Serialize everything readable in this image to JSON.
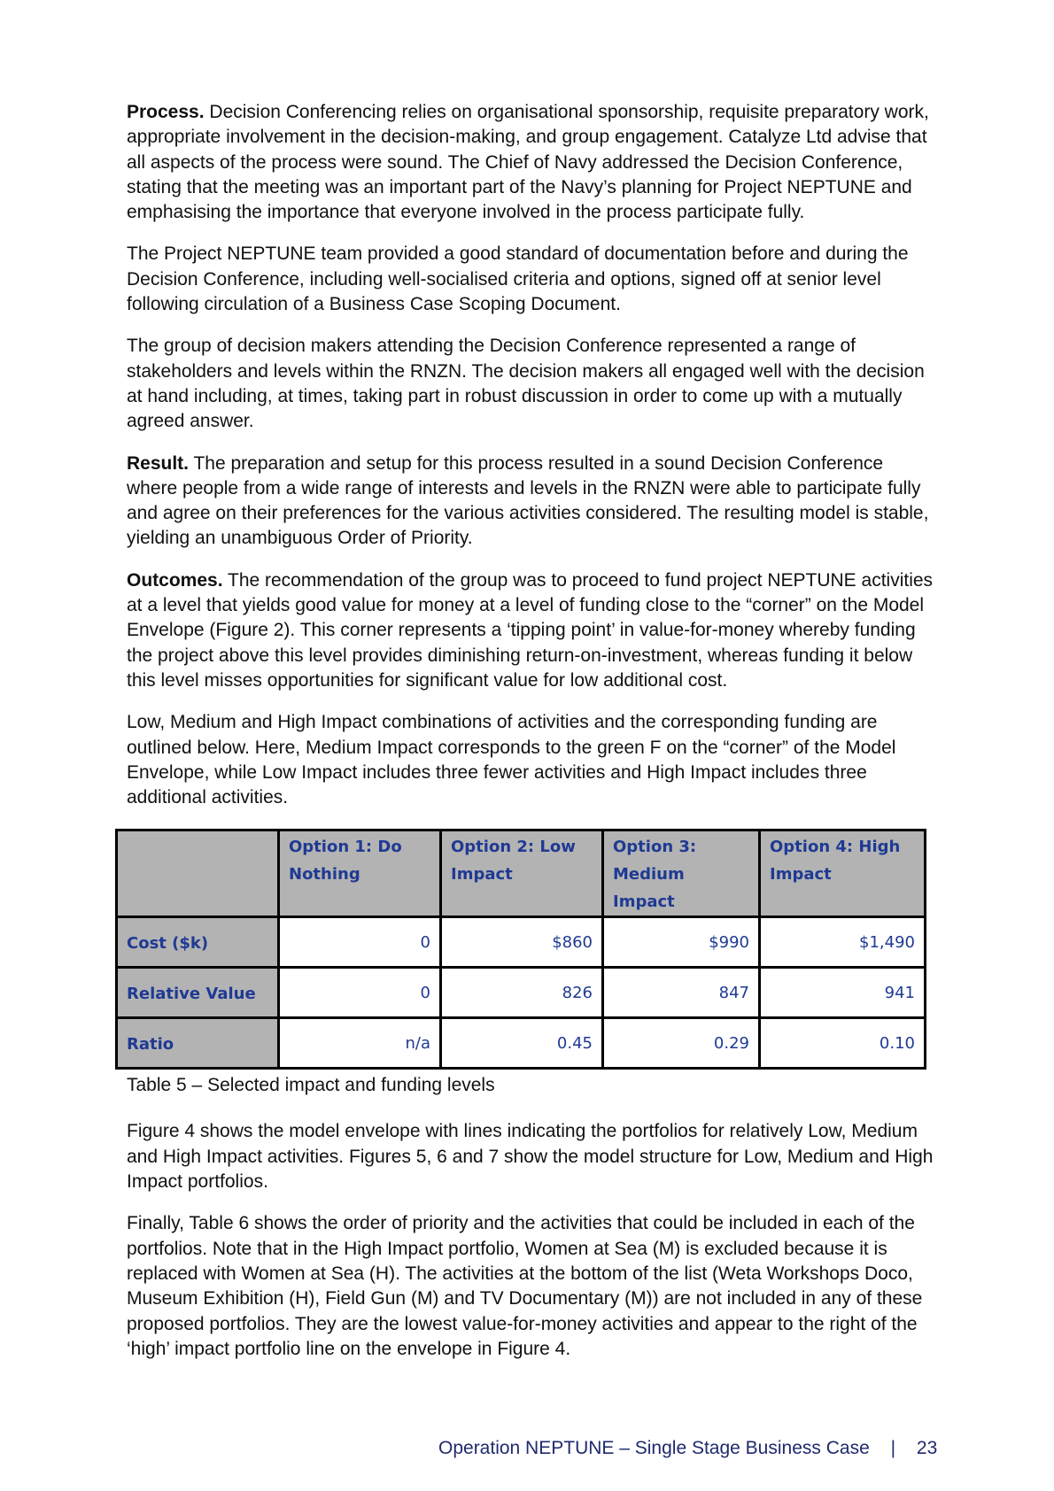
{
  "paragraphs1": [
    {
      "lead": "Process.",
      "text": " Decision Conferencing relies on organisational sponsorship, requisite preparatory work, appropriate involvement in the decision-making, and group engagement. Catalyze Ltd advise that all aspects of the process were sound. The Chief of Navy addressed the Decision Conference, stating that the meeting was an important part of the Navy’s planning for Project NEPTUNE and emphasising the importance that everyone involved in the process participate fully."
    },
    {
      "lead": "",
      "text": "The Project NEPTUNE team provided a good standard of documentation before and during the Decision Conference, including well-socialised criteria and options, signed off at senior level following circulation of a Business Case Scoping Document."
    },
    {
      "lead": "",
      "text": "The group of decision makers attending the Decision Conference represented a range of stakeholders and levels within the RNZN.  The decision makers all engaged well with the decision at hand including, at times, taking part in robust discussion in order to come up with a mutually agreed answer."
    },
    {
      "lead": "Result.",
      "text": " The preparation and setup for this process resulted in a sound Decision Conference where people from a wide range of interests and levels in the RNZN were able to participate fully and agree on their preferences for the various activities considered. The resulting model is stable, yielding an unambiguous Order of Priority."
    },
    {
      "lead": "Outcomes.",
      "text": " The recommendation of the group was to proceed to fund project NEPTUNE activities at a level that yields good value for money at a level of funding close to the “corner” on the Model Envelope (Figure 2). This corner represents a ‘tipping point’ in value-for-money whereby funding the project above this level provides diminishing return-on-investment, whereas funding it below this level misses opportunities for significant value for low additional cost."
    },
    {
      "lead": "",
      "text": "Low, Medium and High Impact combinations of activities and the corresponding funding are outlined below. Here, Medium Impact corresponds to the green F on the “corner” of the Model Envelope, while Low Impact includes three fewer activities and High Impact includes three additional activities."
    }
  ],
  "table": {
    "headers": [
      "",
      "Option 1: Do Nothing",
      "Option 2: Low Impact",
      "Option 3: Medium Impact",
      "Option 4: High Impact"
    ],
    "rows": [
      [
        "Cost ($k)",
        "0",
        "$860",
        "$990",
        "$1,490"
      ],
      [
        "Relative Value",
        "0",
        "826",
        "847",
        "941"
      ],
      [
        "Ratio",
        "n/a",
        "0.45",
        "0.29",
        "0.10"
      ]
    ],
    "caption": "Table 5 – Selected impact and funding levels"
  },
  "paragraphs2": [
    "Figure 4 shows the model envelope with lines indicating the portfolios for relatively Low, Medium and High Impact activities. Figures 5, 6 and 7 show the model structure for Low, Medium and High Impact portfolios.",
    "Finally, Table 6 shows the order of priority and the activities that could be included in each of the portfolios. Note that in the High Impact portfolio, Women at Sea (M) is excluded because it is replaced with Women at Sea (H). The activities at the bottom of the list (Weta Workshops Doco, Museum Exhibition (H), Field Gun (M) and TV Documentary (M)) are not included in any of these proposed portfolios. They are the lowest value-for-money activities and appear to the right of the ‘high’ impact portfolio line on the envelope in Figure 4."
  ],
  "footer": {
    "title": "Operation NEPTUNE – Single Stage Business Case",
    "separator": "|",
    "page": "23"
  }
}
